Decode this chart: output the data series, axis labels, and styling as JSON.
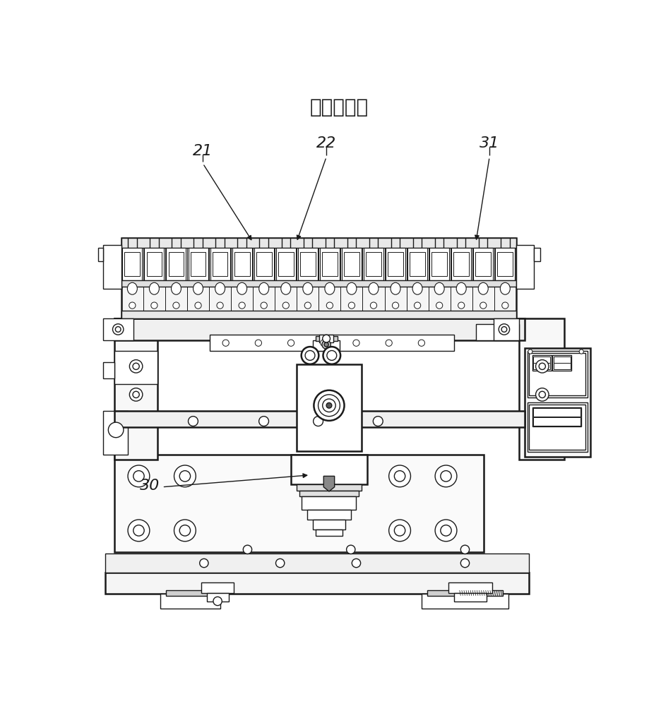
{
  "title": "低位状态图",
  "title_fontsize": 20,
  "bg_color": "#ffffff",
  "line_color": "#1a1a1a",
  "lw": 1.0,
  "lw2": 1.8
}
